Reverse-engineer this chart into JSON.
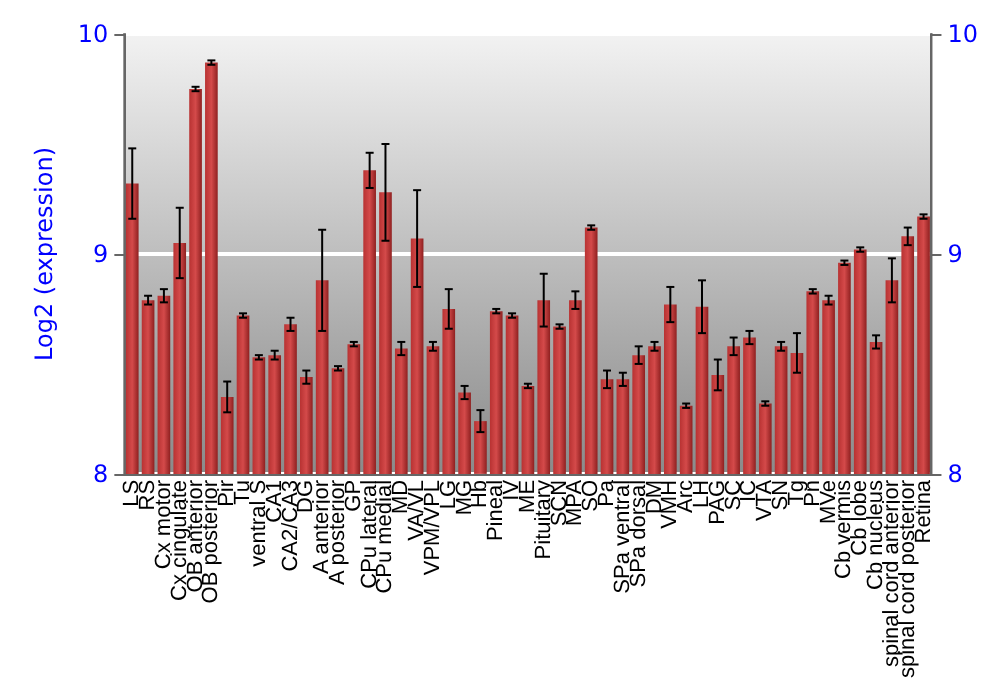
{
  "chart_data": {
    "type": "bar",
    "ylabel": "Log2 (expression)",
    "categories": [
      "LS",
      "RS",
      "Cx motor",
      "Cx cingulate",
      "OB anterior",
      "OB posterior",
      "Pir",
      "Tu",
      "ventral S",
      "CA1",
      "CA2/CA3",
      "DG",
      "A anterior",
      "A posterior",
      "GP",
      "CPu lateral",
      "CPu medial",
      "MD",
      "VA/VL",
      "VPM/VPL",
      "LG",
      "MG",
      "Hb",
      "Pineal",
      "IV",
      "ME",
      "Pituitary",
      "SCN",
      "MPA",
      "SO",
      "Pa",
      "SPa ventral",
      "SPa dorsal",
      "DM",
      "VMH",
      "Arc",
      "LH",
      "PAG",
      "SC",
      "IC",
      "VTA",
      "SN",
      "Tg",
      "Pn",
      "MVe",
      "Cb vermis",
      "Cb lobe",
      "Cb nucleus",
      "spinal cord anterior",
      "spinal cord posterior",
      "Retina"
    ],
    "values": [
      9.32,
      8.79,
      8.81,
      9.05,
      9.75,
      9.87,
      8.35,
      8.72,
      8.53,
      8.54,
      8.68,
      8.44,
      8.88,
      8.48,
      8.59,
      9.38,
      9.28,
      8.57,
      9.07,
      8.58,
      8.75,
      8.37,
      8.24,
      8.74,
      8.72,
      8.4,
      8.79,
      8.67,
      8.79,
      9.12,
      8.43,
      8.43,
      8.54,
      8.58,
      8.77,
      8.31,
      8.76,
      8.45,
      8.58,
      8.62,
      8.32,
      8.58,
      8.55,
      8.83,
      8.79,
      8.96,
      9.02,
      8.6,
      8.88,
      9.08,
      9.17
    ],
    "errors": [
      0.16,
      0.02,
      0.03,
      0.16,
      0.01,
      0.01,
      0.07,
      0.01,
      0.01,
      0.02,
      0.03,
      0.03,
      0.23,
      0.01,
      0.01,
      0.08,
      0.22,
      0.03,
      0.22,
      0.02,
      0.09,
      0.03,
      0.05,
      0.01,
      0.01,
      0.01,
      0.12,
      0.01,
      0.04,
      0.01,
      0.04,
      0.03,
      0.04,
      0.02,
      0.08,
      0.01,
      0.12,
      0.07,
      0.04,
      0.03,
      0.01,
      0.02,
      0.09,
      0.01,
      0.02,
      0.01,
      0.01,
      0.03,
      0.1,
      0.04,
      0.01
    ],
    "color": "#b83232",
    "ylim": [
      8,
      10
    ],
    "yticks": [
      8,
      9,
      10
    ],
    "y2lim": [
      8,
      10
    ],
    "y2ticks": [
      8,
      9,
      10
    ],
    "grid": "y"
  }
}
